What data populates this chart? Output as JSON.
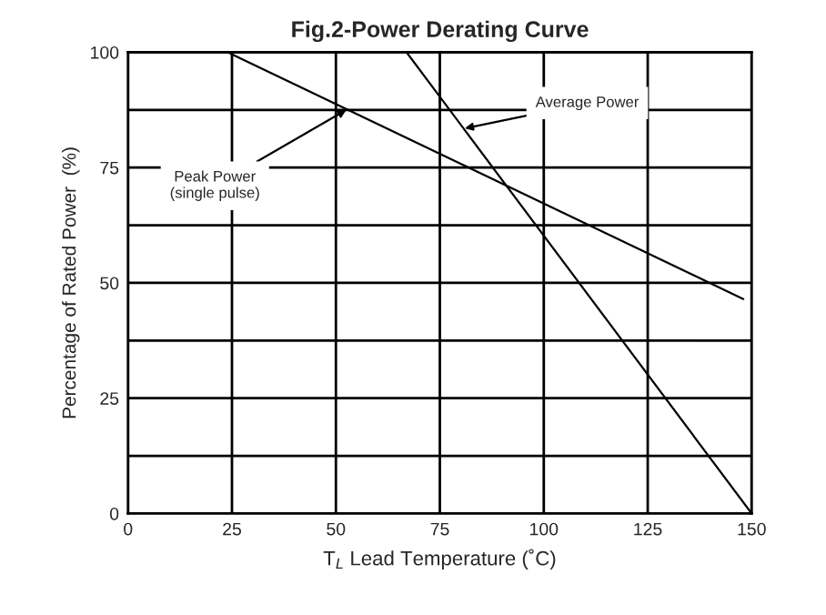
{
  "chart_data": {
    "type": "line",
    "title": "Fig.2-Power Derating Curve",
    "xlabel": "T$_{L}$ Lead Temperature (˚C)",
    "ylabel": "Percentage of Rated Power  (%)",
    "series": [
      {
        "x": [
          24,
          148
        ],
        "values": [
          100,
          46.5
        ],
        "color": "#000000"
      },
      {
        "x": [
          67,
          150
        ],
        "values": [
          100,
          0
        ],
        "color": "#000000"
      }
    ],
    "annotations": [
      {
        "text": "Peak Power\n(single pulse)",
        "x": 52.5,
        "y": 87.5
      },
      {
        "text": "Average Power",
        "x": 81,
        "y": 83.5
      }
    ],
    "xlim": [
      0,
      150
    ],
    "xticks": [
      0,
      25,
      50,
      75,
      100,
      125,
      150
    ],
    "ylim": [
      0,
      100
    ],
    "yticks": [
      0,
      {
        "value": 12.5,
        "label": null
      },
      25,
      {
        "value": 37.5,
        "label": null
      },
      50,
      {
        "value": 62.5,
        "label": null
      },
      75,
      {
        "value": 87.5,
        "label": null
      },
      100
    ],
    "grid": true,
    "marker": "none",
    "line_style": "solid",
    "legend": false
  }
}
